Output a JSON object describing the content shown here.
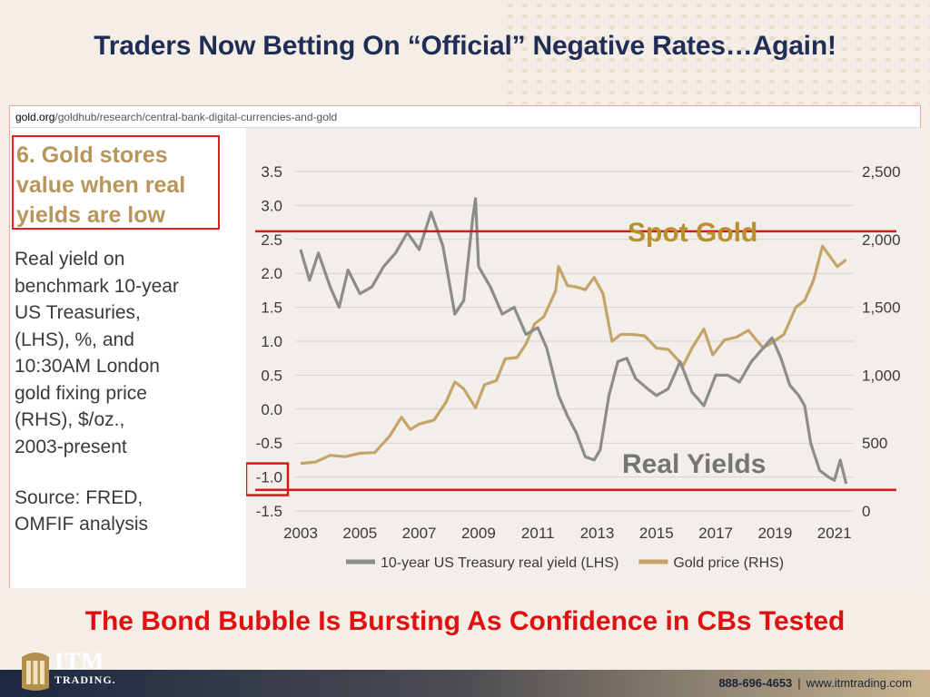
{
  "slide": {
    "headline": "Traders Now Betting On “Official” Negative Rates…Again!",
    "subheadline": "The Bond Bubble Is Bursting As Confidence in CBs Tested",
    "url": {
      "domain": "gold.org",
      "path": "/goldhub/research/central-bank-digital-currencies-and-gold"
    },
    "left_panel": {
      "title_lines": [
        "6. Gold stores",
        "value when real",
        "yields are low"
      ],
      "description_lines": [
        "Real yield on",
        "benchmark 10-year",
        "US Treasuries,",
        "(LHS), %, and",
        "10:30AM London",
        "gold fixing price",
        "(RHS), $/oz.,",
        "2003-present"
      ],
      "source_lines": [
        "Source: FRED,",
        "OMFIF analysis"
      ]
    },
    "annotations": {
      "spot_gold": "Spot Gold",
      "real_yields": "Real Yields"
    },
    "footer": {
      "brand_big": "ITM",
      "brand_small": "TRADING.",
      "phone": "888-696-4653",
      "separator": "|",
      "website": "www.itmtrading.com"
    }
  },
  "colors": {
    "headline": "#1f2d57",
    "subheadline": "#e01010",
    "gold_series": "#c4a468",
    "yield_series": "#8c8c8c",
    "annotation_gold": "#b8902e",
    "annotation_yield": "#757575",
    "highlight_lines": "#d81818"
  },
  "chart_data": {
    "type": "line",
    "x_label": "",
    "x_ticks": [
      "2003",
      "2005",
      "2007",
      "2009",
      "2011",
      "2013",
      "2015",
      "2017",
      "2019",
      "2021"
    ],
    "xlim": [
      2003,
      2021.5
    ],
    "left_axis": {
      "ticks": [
        "3.5",
        "3.0",
        "2.5",
        "2.0",
        "1.5",
        "1.0",
        "0.5",
        "0.0",
        "-0.5",
        "-1.0",
        "-1.5"
      ],
      "ylim": [
        -1.5,
        3.5
      ]
    },
    "right_axis": {
      "ticks": [
        "2,500",
        "2,000",
        "1,500",
        "1,000",
        "500",
        "0"
      ],
      "ylim": [
        0,
        2500
      ]
    },
    "grid": true,
    "legend_position": "bottom",
    "reference_lines": [
      {
        "axis": "right",
        "value": 2060
      },
      {
        "axis": "left",
        "value": -1.19
      }
    ],
    "highlighted_tick": "-1.0",
    "series": [
      {
        "name": "10-year US Treasury real yield (LHS)",
        "axis": "left",
        "points": [
          [
            2003.0,
            2.35
          ],
          [
            2003.3,
            1.9
          ],
          [
            2003.6,
            2.3
          ],
          [
            2004.0,
            1.8
          ],
          [
            2004.3,
            1.5
          ],
          [
            2004.6,
            2.05
          ],
          [
            2005.0,
            1.7
          ],
          [
            2005.4,
            1.8
          ],
          [
            2005.8,
            2.1
          ],
          [
            2006.2,
            2.3
          ],
          [
            2006.6,
            2.6
          ],
          [
            2007.0,
            2.35
          ],
          [
            2007.4,
            2.9
          ],
          [
            2007.8,
            2.4
          ],
          [
            2008.2,
            1.4
          ],
          [
            2008.5,
            1.6
          ],
          [
            2008.8,
            2.8
          ],
          [
            2008.9,
            3.1
          ],
          [
            2009.0,
            2.1
          ],
          [
            2009.4,
            1.8
          ],
          [
            2009.8,
            1.4
          ],
          [
            2010.2,
            1.5
          ],
          [
            2010.6,
            1.1
          ],
          [
            2011.0,
            1.2
          ],
          [
            2011.3,
            0.9
          ],
          [
            2011.7,
            0.2
          ],
          [
            2012.0,
            -0.1
          ],
          [
            2012.3,
            -0.35
          ],
          [
            2012.6,
            -0.7
          ],
          [
            2012.9,
            -0.75
          ],
          [
            2013.1,
            -0.6
          ],
          [
            2013.4,
            0.2
          ],
          [
            2013.7,
            0.7
          ],
          [
            2014.0,
            0.75
          ],
          [
            2014.3,
            0.45
          ],
          [
            2014.7,
            0.3
          ],
          [
            2015.0,
            0.2
          ],
          [
            2015.4,
            0.3
          ],
          [
            2015.8,
            0.7
          ],
          [
            2016.2,
            0.25
          ],
          [
            2016.6,
            0.05
          ],
          [
            2017.0,
            0.5
          ],
          [
            2017.4,
            0.5
          ],
          [
            2017.8,
            0.4
          ],
          [
            2018.2,
            0.7
          ],
          [
            2018.6,
            0.9
          ],
          [
            2018.9,
            1.05
          ],
          [
            2019.2,
            0.75
          ],
          [
            2019.5,
            0.35
          ],
          [
            2019.8,
            0.2
          ],
          [
            2020.0,
            0.05
          ],
          [
            2020.2,
            -0.5
          ],
          [
            2020.5,
            -0.9
          ],
          [
            2020.8,
            -1.0
          ],
          [
            2021.0,
            -1.05
          ],
          [
            2021.2,
            -0.75
          ],
          [
            2021.4,
            -1.1
          ]
        ]
      },
      {
        "name": "Gold price (RHS)",
        "axis": "right",
        "points": [
          [
            2003.0,
            350
          ],
          [
            2003.5,
            360
          ],
          [
            2004.0,
            410
          ],
          [
            2004.5,
            400
          ],
          [
            2005.0,
            425
          ],
          [
            2005.5,
            430
          ],
          [
            2006.0,
            550
          ],
          [
            2006.4,
            690
          ],
          [
            2006.7,
            600
          ],
          [
            2007.0,
            640
          ],
          [
            2007.5,
            670
          ],
          [
            2007.9,
            800
          ],
          [
            2008.2,
            950
          ],
          [
            2008.5,
            900
          ],
          [
            2008.9,
            760
          ],
          [
            2009.2,
            930
          ],
          [
            2009.6,
            960
          ],
          [
            2009.9,
            1120
          ],
          [
            2010.3,
            1130
          ],
          [
            2010.6,
            1230
          ],
          [
            2010.9,
            1380
          ],
          [
            2011.2,
            1430
          ],
          [
            2011.6,
            1620
          ],
          [
            2011.7,
            1800
          ],
          [
            2012.0,
            1660
          ],
          [
            2012.3,
            1650
          ],
          [
            2012.6,
            1630
          ],
          [
            2012.9,
            1720
          ],
          [
            2013.2,
            1600
          ],
          [
            2013.5,
            1250
          ],
          [
            2013.8,
            1300
          ],
          [
            2014.2,
            1300
          ],
          [
            2014.6,
            1290
          ],
          [
            2015.0,
            1200
          ],
          [
            2015.4,
            1190
          ],
          [
            2015.9,
            1070
          ],
          [
            2016.2,
            1200
          ],
          [
            2016.6,
            1340
          ],
          [
            2016.9,
            1150
          ],
          [
            2017.3,
            1260
          ],
          [
            2017.7,
            1280
          ],
          [
            2018.1,
            1330
          ],
          [
            2018.6,
            1200
          ],
          [
            2018.9,
            1240
          ],
          [
            2019.3,
            1300
          ],
          [
            2019.7,
            1500
          ],
          [
            2020.0,
            1550
          ],
          [
            2020.3,
            1700
          ],
          [
            2020.6,
            1950
          ],
          [
            2020.9,
            1860
          ],
          [
            2021.1,
            1800
          ],
          [
            2021.4,
            1850
          ]
        ]
      }
    ]
  }
}
